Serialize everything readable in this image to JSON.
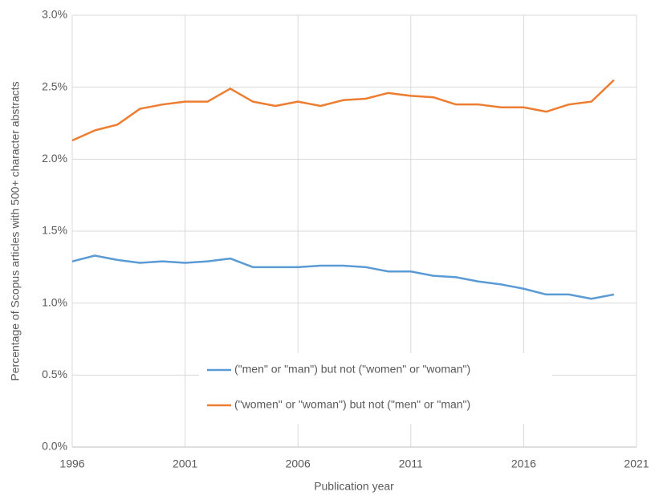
{
  "chart_data": {
    "type": "line",
    "xlabel": "Publication year",
    "ylabel": "Percentage of Scopus articles with 500+ character abstracts",
    "x": [
      1996,
      1997,
      1998,
      1999,
      2000,
      2001,
      2002,
      2003,
      2004,
      2005,
      2006,
      2007,
      2008,
      2009,
      2010,
      2011,
      2012,
      2013,
      2014,
      2015,
      2016,
      2017,
      2018,
      2019,
      2020
    ],
    "series": [
      {
        "name": "(\"men\" or \"man\") but not (\"women\" or \"woman\")",
        "color": "#5b9bd5",
        "values": [
          1.29,
          1.33,
          1.3,
          1.28,
          1.29,
          1.28,
          1.29,
          1.31,
          1.25,
          1.25,
          1.25,
          1.26,
          1.26,
          1.25,
          1.22,
          1.22,
          1.19,
          1.18,
          1.15,
          1.13,
          1.1,
          1.06,
          1.06,
          1.03,
          1.06
        ]
      },
      {
        "name": "(\"women\" or \"woman\") but not (\"men\" or \"man\")",
        "color": "#ed7d31",
        "values": [
          2.13,
          2.2,
          2.24,
          2.35,
          2.38,
          2.4,
          2.4,
          2.49,
          2.4,
          2.37,
          2.4,
          2.37,
          2.41,
          2.42,
          2.46,
          2.44,
          2.43,
          2.38,
          2.38,
          2.36,
          2.36,
          2.33,
          2.38,
          2.4,
          2.55
        ]
      }
    ],
    "xlim": [
      1996,
      2021
    ],
    "xticks": [
      1996,
      2001,
      2006,
      2011,
      2016,
      2021
    ],
    "ylim": [
      0,
      3
    ],
    "yticks": [
      {
        "value": 0,
        "label": "0.0%"
      },
      {
        "value": 0.5,
        "label": "0.5%"
      },
      {
        "value": 1,
        "label": "1.0%"
      },
      {
        "value": 1.5,
        "label": "1.5%"
      },
      {
        "value": 2,
        "label": "2.0%"
      },
      {
        "value": 2.5,
        "label": "2.5%"
      },
      {
        "value": 3,
        "label": "3.0%"
      }
    ],
    "grid": true,
    "legend": "inside"
  }
}
